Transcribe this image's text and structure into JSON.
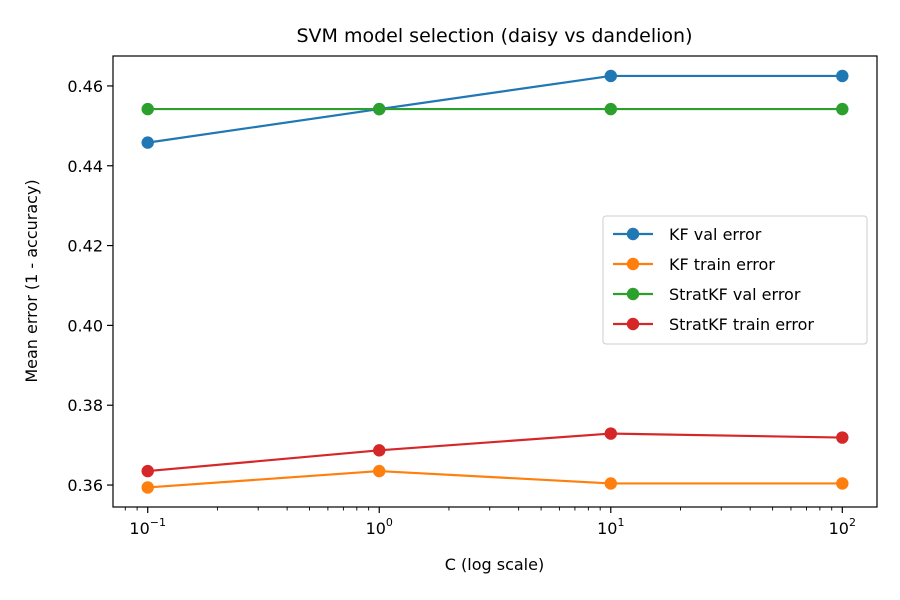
{
  "chart_data": {
    "type": "line",
    "title": "SVM model selection (daisy vs dandelion)",
    "xlabel": "C (log scale)",
    "ylabel": "Mean error (1 - accuracy)",
    "xscale": "log",
    "x": [
      0.1,
      1,
      10,
      100
    ],
    "xticks": [
      {
        "value": 0.1,
        "base": "10",
        "exp": "−1"
      },
      {
        "value": 1,
        "base": "10",
        "exp": "0"
      },
      {
        "value": 10,
        "base": "10",
        "exp": "1"
      },
      {
        "value": 100,
        "base": "10",
        "exp": "2"
      }
    ],
    "xlim": [
      0.0708,
      141.2
    ],
    "yticks": [
      "0.36",
      "0.38",
      "0.40",
      "0.42",
      "0.44",
      "0.46"
    ],
    "ylim": [
      0.3545,
      0.4675
    ],
    "grid": false,
    "legend_position": "center-right",
    "series": [
      {
        "name": "KF val error",
        "color": "#1f77b4",
        "values": [
          0.4458,
          0.4542,
          0.4625,
          0.4625
        ]
      },
      {
        "name": "KF train error",
        "color": "#ff7f0e",
        "values": [
          0.3594,
          0.3635,
          0.3604,
          0.3604
        ]
      },
      {
        "name": "StratKF val error",
        "color": "#2ca02c",
        "values": [
          0.4542,
          0.4542,
          0.4542,
          0.4542
        ]
      },
      {
        "name": "StratKF train error",
        "color": "#d62728",
        "values": [
          0.3635,
          0.3687,
          0.3729,
          0.3719
        ]
      }
    ]
  }
}
